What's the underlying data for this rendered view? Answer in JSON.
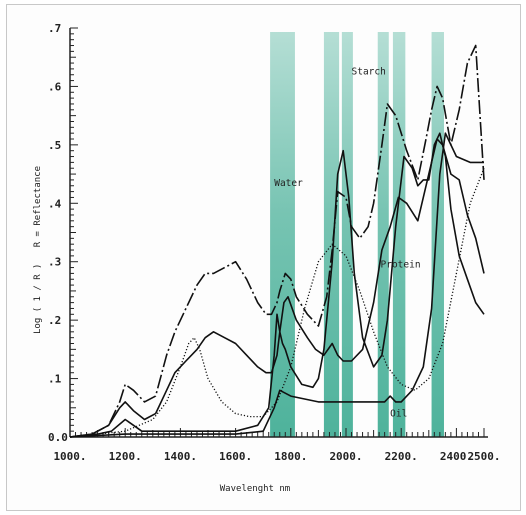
{
  "chart_data": {
    "type": "line",
    "xlabel": "Wavelenght nm",
    "ylabel": "Log ( 1 / R )   R = Reflectance",
    "xlim": [
      1000,
      2500
    ],
    "ylim": [
      0,
      0.7
    ],
    "x_ticks": [
      "1000.",
      "1200.",
      "1400.",
      "1600.",
      "1800.",
      "2000.",
      "2200.",
      "2400.",
      "2500."
    ],
    "x_tick_values": [
      1000,
      1200,
      1400,
      1600,
      1800,
      2000,
      2200,
      2400,
      2500
    ],
    "y_ticks": [
      "0.0",
      ".1",
      ".2",
      ".3",
      ".4",
      ".5",
      ".6",
      ".7"
    ],
    "y_tick_values": [
      0,
      0.1,
      0.2,
      0.3,
      0.4,
      0.5,
      0.6,
      0.7
    ],
    "grid": false,
    "band_color": "#2fa58a",
    "bands": [
      {
        "from": 1725,
        "to": 1815
      },
      {
        "from": 1920,
        "to": 1975
      },
      {
        "from": 1985,
        "to": 2025
      },
      {
        "from": 2115,
        "to": 2155
      },
      {
        "from": 2170,
        "to": 2215
      },
      {
        "from": 2310,
        "to": 2355
      }
    ],
    "annotations": [
      {
        "text": "Starch",
        "x": 2020,
        "y": 0.62
      },
      {
        "text": "Water",
        "x": 1740,
        "y": 0.43
      },
      {
        "text": "Protein",
        "x": 2125,
        "y": 0.29
      },
      {
        "text": "Oil",
        "x": 2160,
        "y": 0.035
      }
    ],
    "series": [
      {
        "style": "dashdot",
        "x": [
          1000,
          1080,
          1140,
          1180,
          1200,
          1230,
          1270,
          1310,
          1350,
          1380,
          1420,
          1460,
          1490,
          1520,
          1560,
          1600,
          1640,
          1680,
          1710,
          1730,
          1750,
          1760,
          1780,
          1800,
          1820,
          1860,
          1900,
          1930,
          1950,
          1970,
          2000,
          2020,
          2050,
          2080,
          2100,
          2130,
          2150,
          2180,
          2220,
          2260,
          2290,
          2310,
          2330,
          2350,
          2380,
          2410,
          2440,
          2470,
          2500
        ],
        "y": [
          0.0,
          0.005,
          0.02,
          0.06,
          0.09,
          0.08,
          0.06,
          0.07,
          0.14,
          0.18,
          0.22,
          0.26,
          0.28,
          0.28,
          0.29,
          0.3,
          0.27,
          0.23,
          0.21,
          0.21,
          0.23,
          0.25,
          0.28,
          0.27,
          0.24,
          0.21,
          0.19,
          0.24,
          0.32,
          0.42,
          0.41,
          0.36,
          0.34,
          0.36,
          0.4,
          0.5,
          0.57,
          0.55,
          0.49,
          0.44,
          0.51,
          0.56,
          0.6,
          0.58,
          0.5,
          0.56,
          0.64,
          0.67,
          0.44
        ]
      },
      {
        "style": "solid",
        "x": [
          1000,
          1080,
          1140,
          1180,
          1200,
          1230,
          1270,
          1310,
          1350,
          1380,
          1420,
          1460,
          1490,
          1520,
          1560,
          1600,
          1640,
          1680,
          1710,
          1730,
          1750,
          1760,
          1775,
          1790,
          1820,
          1860,
          1890,
          1920,
          1950,
          1970,
          1990,
          2020,
          2060,
          2100,
          2130,
          2160,
          2190,
          2220,
          2260,
          2300,
          2330,
          2350,
          2380,
          2410,
          2440,
          2470,
          2500
        ],
        "y": [
          0.0,
          0.005,
          0.02,
          0.05,
          0.06,
          0.045,
          0.03,
          0.04,
          0.08,
          0.11,
          0.13,
          0.15,
          0.17,
          0.18,
          0.17,
          0.16,
          0.14,
          0.12,
          0.11,
          0.11,
          0.14,
          0.18,
          0.23,
          0.24,
          0.2,
          0.17,
          0.15,
          0.14,
          0.16,
          0.14,
          0.13,
          0.13,
          0.15,
          0.23,
          0.32,
          0.36,
          0.41,
          0.4,
          0.37,
          0.45,
          0.51,
          0.5,
          0.45,
          0.44,
          0.38,
          0.34,
          0.28
        ]
      },
      {
        "style": "solid",
        "x": [
          1000,
          1100,
          1150,
          1200,
          1230,
          1260,
          1300,
          1400,
          1500,
          1600,
          1680,
          1720,
          1740,
          1750,
          1760,
          1770,
          1780,
          1800,
          1840,
          1880,
          1900,
          1920,
          1950,
          1970,
          1990,
          2010,
          2030,
          2060,
          2100,
          2130,
          2150,
          2180,
          2210,
          2240,
          2260,
          2280,
          2300,
          2320,
          2340,
          2360,
          2380,
          2410,
          2440,
          2470,
          2500
        ],
        "y": [
          0.0,
          0.005,
          0.01,
          0.03,
          0.02,
          0.01,
          0.01,
          0.01,
          0.01,
          0.01,
          0.02,
          0.05,
          0.14,
          0.21,
          0.18,
          0.16,
          0.15,
          0.12,
          0.09,
          0.085,
          0.1,
          0.15,
          0.3,
          0.45,
          0.49,
          0.41,
          0.28,
          0.17,
          0.12,
          0.14,
          0.2,
          0.36,
          0.48,
          0.46,
          0.43,
          0.44,
          0.44,
          0.5,
          0.52,
          0.48,
          0.39,
          0.31,
          0.27,
          0.23,
          0.21
        ]
      },
      {
        "style": "dotted",
        "x": [
          1000,
          1100,
          1200,
          1300,
          1350,
          1400,
          1430,
          1450,
          1470,
          1500,
          1550,
          1600,
          1650,
          1700,
          1750,
          1800,
          1850,
          1900,
          1950,
          2000,
          2050,
          2100,
          2150,
          2200,
          2250,
          2300,
          2350,
          2400,
          2450,
          2500
        ],
        "y": [
          0.0,
          0.005,
          0.01,
          0.03,
          0.06,
          0.12,
          0.16,
          0.17,
          0.15,
          0.1,
          0.06,
          0.04,
          0.035,
          0.035,
          0.06,
          0.12,
          0.22,
          0.3,
          0.33,
          0.31,
          0.25,
          0.18,
          0.12,
          0.09,
          0.08,
          0.1,
          0.16,
          0.28,
          0.4,
          0.46
        ]
      },
      {
        "style": "solid",
        "x": [
          1000,
          1200,
          1400,
          1600,
          1700,
          1740,
          1760,
          1800,
          1850,
          1900,
          1950,
          2000,
          2050,
          2100,
          2140,
          2160,
          2180,
          2200,
          2240,
          2280,
          2310,
          2340,
          2360,
          2380,
          2400,
          2450,
          2500
        ],
        "y": [
          0.0,
          0.005,
          0.005,
          0.005,
          0.01,
          0.05,
          0.08,
          0.07,
          0.065,
          0.06,
          0.06,
          0.06,
          0.06,
          0.06,
          0.06,
          0.07,
          0.06,
          0.06,
          0.08,
          0.12,
          0.22,
          0.45,
          0.52,
          0.5,
          0.48,
          0.47,
          0.47
        ]
      }
    ]
  }
}
